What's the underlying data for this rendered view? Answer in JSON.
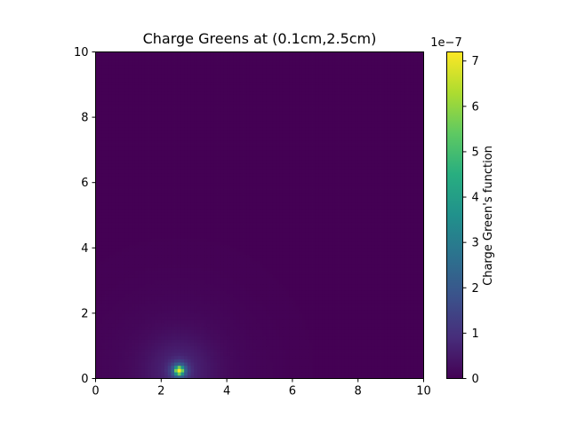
{
  "chart_data": {
    "type": "heatmap",
    "title": "Charge Greens at (0.1cm,2.5cm)",
    "xlabel": "",
    "ylabel": "",
    "xlim": [
      0,
      10
    ],
    "ylim": [
      0,
      10
    ],
    "x_ticks": [
      "0",
      "2",
      "4",
      "6",
      "8",
      "10"
    ],
    "y_ticks": [
      "0",
      "2",
      "4",
      "6",
      "8",
      "10"
    ],
    "colormap": "viridis",
    "source_point": {
      "x": 2.55,
      "y": 0.25
    },
    "peak_value": 7.1e-07,
    "colorbar": {
      "label": "Charge Green's function",
      "range": [
        0,
        7.2
      ],
      "ticks": [
        "0",
        "1",
        "2",
        "3",
        "4",
        "5",
        "6",
        "7"
      ],
      "offset_text": "1e−7"
    },
    "grid": false
  }
}
